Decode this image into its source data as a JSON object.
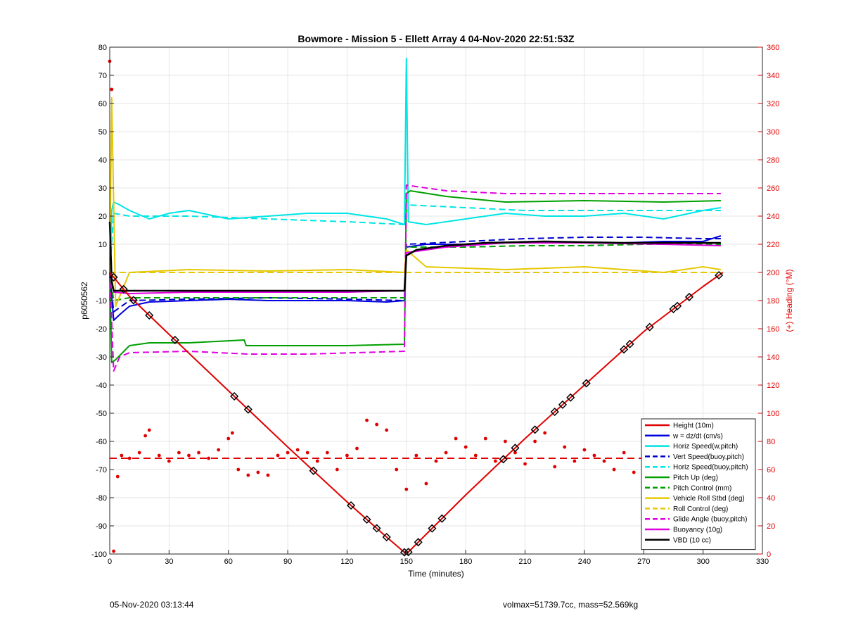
{
  "chart_data": {
    "type": "line",
    "title": "Bowmore - Mission 5 - Ellett Array 4 04-Nov-2020 22:51:53Z",
    "xlabel": "Time (minutes)",
    "ylabel": "p6050562",
    "y2label": "(+) Heading (°M)",
    "xlim": [
      0,
      330
    ],
    "ylim": [
      -100,
      80
    ],
    "y2lim": [
      0,
      360
    ],
    "xticks": [
      0,
      30,
      60,
      90,
      120,
      150,
      180,
      210,
      240,
      270,
      300,
      330
    ],
    "yticks": [
      -100,
      -90,
      -80,
      -70,
      -60,
      -50,
      -40,
      -30,
      -20,
      -10,
      0,
      10,
      20,
      30,
      40,
      50,
      60,
      70,
      80
    ],
    "y2ticks": [
      0,
      20,
      40,
      60,
      80,
      100,
      120,
      140,
      160,
      180,
      200,
      220,
      240,
      260,
      280,
      300,
      320,
      340,
      360
    ],
    "grid": true,
    "legend_position": "bottom-right",
    "series": [
      {
        "name": "Height (10m)",
        "color": "#e00000",
        "style": "solid",
        "width": 2,
        "x": [
          0,
          10,
          30,
          60,
          90,
          120,
          140,
          150,
          160,
          180,
          210,
          240,
          270,
          300,
          310
        ],
        "y": [
          0,
          -8.5,
          -22,
          -42,
          -62,
          -81.5,
          -94,
          -100,
          -93,
          -79,
          -59,
          -40,
          -21,
          -5,
          0
        ]
      },
      {
        "name": "w = dz/dt (cm/s)",
        "color": "#0000e0",
        "style": "solid",
        "width": 2,
        "x": [
          0,
          2,
          5,
          10,
          20,
          40,
          60,
          80,
          100,
          120,
          140,
          149,
          150,
          160,
          180,
          200,
          220,
          240,
          260,
          280,
          300,
          309
        ],
        "y": [
          0,
          -17,
          -15,
          -12,
          -10.5,
          -10,
          -9.5,
          -10,
          -10,
          -10,
          -10.5,
          -10,
          9,
          10,
          10,
          10.5,
          10.5,
          10.5,
          10.5,
          11,
          11,
          13
        ]
      },
      {
        "name": "Horiz Speed(w,pitch)",
        "color": "#00e5e5",
        "style": "solid",
        "width": 2,
        "x": [
          0,
          1,
          2,
          5,
          10,
          20,
          30,
          40,
          60,
          80,
          100,
          120,
          140,
          149,
          150,
          151,
          160,
          180,
          200,
          220,
          240,
          260,
          280,
          300,
          309
        ],
        "y": [
          -10,
          22,
          25,
          24,
          22,
          19,
          21,
          22,
          19,
          20,
          21,
          21,
          19,
          17,
          76,
          18,
          17,
          19,
          21,
          20,
          20,
          21,
          19,
          22,
          23
        ]
      },
      {
        "name": "Vert Speed(buoy,pitch)",
        "color": "#0000cc",
        "style": "dashed",
        "width": 2,
        "x": [
          0,
          2,
          10,
          40,
          80,
          120,
          149,
          150,
          180,
          210,
          240,
          270,
          300,
          309
        ],
        "y": [
          0,
          -14,
          -10,
          -9.5,
          -9,
          -9.5,
          -10,
          10,
          11,
          12,
          12.5,
          12.5,
          12,
          12
        ]
      },
      {
        "name": "Horiz Speed(buoy,pitch)",
        "color": "#00e5e5",
        "style": "dashed",
        "width": 2,
        "x": [
          0,
          2,
          10,
          40,
          80,
          120,
          149,
          150,
          180,
          210,
          240,
          270,
          300,
          309
        ],
        "y": [
          0,
          21,
          20,
          20,
          19,
          18,
          17,
          24,
          23,
          22,
          22,
          22,
          22,
          22
        ]
      },
      {
        "name": "Pitch Up (deg)",
        "color": "#00a000",
        "style": "solid",
        "width": 2,
        "x": [
          0,
          1,
          3,
          10,
          20,
          40,
          68,
          69,
          90,
          120,
          149,
          150,
          152,
          170,
          200,
          240,
          280,
          309
        ],
        "y": [
          0,
          -32,
          -31,
          -26,
          -25,
          -25,
          -24,
          -26,
          -26,
          -26,
          -25.5,
          28,
          29,
          27,
          25,
          25.5,
          25,
          25.5
        ]
      },
      {
        "name": "Pitch Control (mm)",
        "color": "#00a000",
        "style": "dashed",
        "width": 2,
        "x": [
          0,
          2,
          10,
          40,
          80,
          120,
          149,
          150,
          180,
          210,
          240,
          270,
          300,
          309
        ],
        "y": [
          0,
          -10,
          -9,
          -9,
          -9,
          -9,
          -9,
          9,
          9,
          9.5,
          9.5,
          10,
          10,
          10
        ]
      },
      {
        "name": "Vehicle Roll Stbd (deg)",
        "color": "#e6c800",
        "style": "solid",
        "width": 2,
        "x": [
          0,
          1,
          3,
          10,
          40,
          80,
          120,
          149,
          150,
          160,
          200,
          240,
          280,
          300,
          309
        ],
        "y": [
          0,
          62,
          -12,
          0,
          1,
          0.5,
          1,
          0,
          8,
          2,
          1,
          2,
          0,
          2,
          1
        ]
      },
      {
        "name": "Roll Control (deg)",
        "color": "#e6c800",
        "style": "dashed",
        "width": 2,
        "x": [
          0,
          2,
          10,
          40,
          80,
          120,
          149,
          150,
          180,
          210,
          240,
          270,
          300,
          309
        ],
        "y": [
          0,
          0,
          0,
          0,
          0,
          0,
          0,
          0,
          0,
          0,
          0,
          0,
          0,
          0
        ]
      },
      {
        "name": "Glide Angle (buoy,pitch)",
        "color": "#e000e0",
        "style": "dashed",
        "width": 2,
        "x": [
          0,
          2,
          5,
          10,
          40,
          70,
          100,
          149,
          150,
          170,
          200,
          240,
          270,
          309
        ],
        "y": [
          0,
          -35,
          -30,
          -28.5,
          -28,
          -29,
          -29,
          -28,
          31,
          29,
          28,
          28,
          28,
          28
        ]
      },
      {
        "name": "Buoyancy (10g)",
        "color": "#e000e0",
        "style": "solid",
        "width": 2,
        "x": [
          0,
          2,
          10,
          40,
          80,
          120,
          149,
          150,
          170,
          200,
          240,
          280,
          309
        ],
        "y": [
          0,
          -7,
          -7.5,
          -7,
          -7,
          -7,
          -6.5,
          7,
          9,
          10.5,
          10.5,
          10,
          9.5
        ]
      },
      {
        "name": "VBD (10 cc)",
        "color": "#000000",
        "style": "solid",
        "width": 2.5,
        "x": [
          0,
          1,
          2,
          40,
          80,
          120,
          149,
          150,
          155,
          160,
          170,
          190,
          220,
          260,
          309
        ],
        "y": [
          18,
          -3,
          -6.5,
          -6.5,
          -6.5,
          -6.5,
          -6.5,
          6,
          8,
          8.5,
          9.5,
          10.5,
          11,
          10.5,
          10.5
        ]
      }
    ],
    "heading": {
      "axis": "right",
      "color": "#e00000",
      "mean": 68,
      "x": [
        0,
        1,
        2,
        4,
        6,
        10,
        15,
        18,
        20,
        25,
        30,
        35,
        40,
        45,
        50,
        55,
        60,
        62,
        65,
        70,
        75,
        80,
        85,
        90,
        95,
        100,
        105,
        110,
        115,
        120,
        125,
        130,
        135,
        140,
        145,
        150,
        155,
        160,
        165,
        170,
        175,
        180,
        185,
        190,
        195,
        200,
        205,
        210,
        215,
        220,
        225,
        230,
        235,
        240,
        245,
        250,
        255,
        260,
        265,
        270,
        275,
        280,
        285,
        290,
        295,
        300,
        305,
        309
      ],
      "y": [
        350,
        330,
        2,
        55,
        70,
        68,
        72,
        84,
        88,
        70,
        66,
        72,
        70,
        72,
        68,
        74,
        82,
        86,
        60,
        56,
        58,
        56,
        70,
        72,
        74,
        72,
        66,
        72,
        60,
        70,
        75,
        95,
        92,
        88,
        60,
        46,
        70,
        50,
        66,
        72,
        82,
        76,
        70,
        82,
        66,
        80,
        72,
        64,
        80,
        86,
        62,
        76,
        66,
        74,
        70,
        66,
        60,
        72,
        58,
        66,
        70,
        58,
        60,
        70,
        72,
        64,
        68,
        70
      ]
    },
    "markers": {
      "color": "#000000",
      "x": [
        2,
        7,
        12,
        20,
        33,
        63,
        70,
        103,
        122,
        130,
        135,
        140,
        149,
        151,
        156,
        163,
        168,
        199,
        205,
        215,
        225,
        229,
        233,
        241,
        260,
        263,
        273,
        285,
        287,
        293,
        308
      ]
    }
  },
  "footer": {
    "left": "05-Nov-2020 03:13:44",
    "right": "volmax=51739.7cc, mass=52.569kg"
  }
}
